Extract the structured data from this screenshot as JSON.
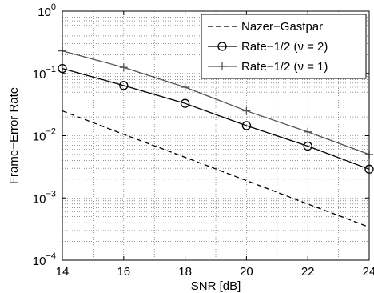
{
  "chart_data": {
    "type": "line",
    "title": "",
    "xlabel": "SNR [dB]",
    "ylabel": "Frame−Error Rate",
    "xlim": [
      14,
      24
    ],
    "ylim": [
      0.0001,
      1
    ],
    "yscale": "log",
    "grid": true,
    "legend_position": "top-right",
    "x_ticks": [
      14,
      16,
      18,
      20,
      22,
      24
    ],
    "x_tick_labels": [
      "14",
      "16",
      "18",
      "20",
      "22",
      "24"
    ],
    "y_ticks": [
      0.0001,
      0.001,
      0.01,
      0.1,
      1
    ],
    "y_tick_labels": [
      {
        "base": "10",
        "exp": "−4"
      },
      {
        "base": "10",
        "exp": "−3"
      },
      {
        "base": "10",
        "exp": "−2"
      },
      {
        "base": "10",
        "exp": "−1"
      },
      {
        "base": "10",
        "exp": "0"
      }
    ],
    "series": [
      {
        "name": "Nazer−Gastpar",
        "style": "dashed",
        "marker": "none",
        "color": "#000000",
        "x": [
          14,
          16,
          18,
          20,
          22,
          24
        ],
        "y": [
          0.025,
          0.0105,
          0.0045,
          0.0019,
          0.0008,
          0.00034
        ]
      },
      {
        "name": "Rate−1/2 (ν = 2)",
        "style": "solid",
        "marker": "circle",
        "color": "#000000",
        "x": [
          14,
          16,
          18,
          20,
          22,
          24
        ],
        "y": [
          0.12,
          0.064,
          0.033,
          0.0145,
          0.0068,
          0.0029
        ]
      },
      {
        "name": "Rate−1/2 (ν = 1)",
        "style": "solid",
        "marker": "plus",
        "color": "#555555",
        "x": [
          14,
          16,
          18,
          20,
          22,
          24
        ],
        "y": [
          0.23,
          0.125,
          0.06,
          0.025,
          0.0115,
          0.005
        ]
      }
    ]
  }
}
